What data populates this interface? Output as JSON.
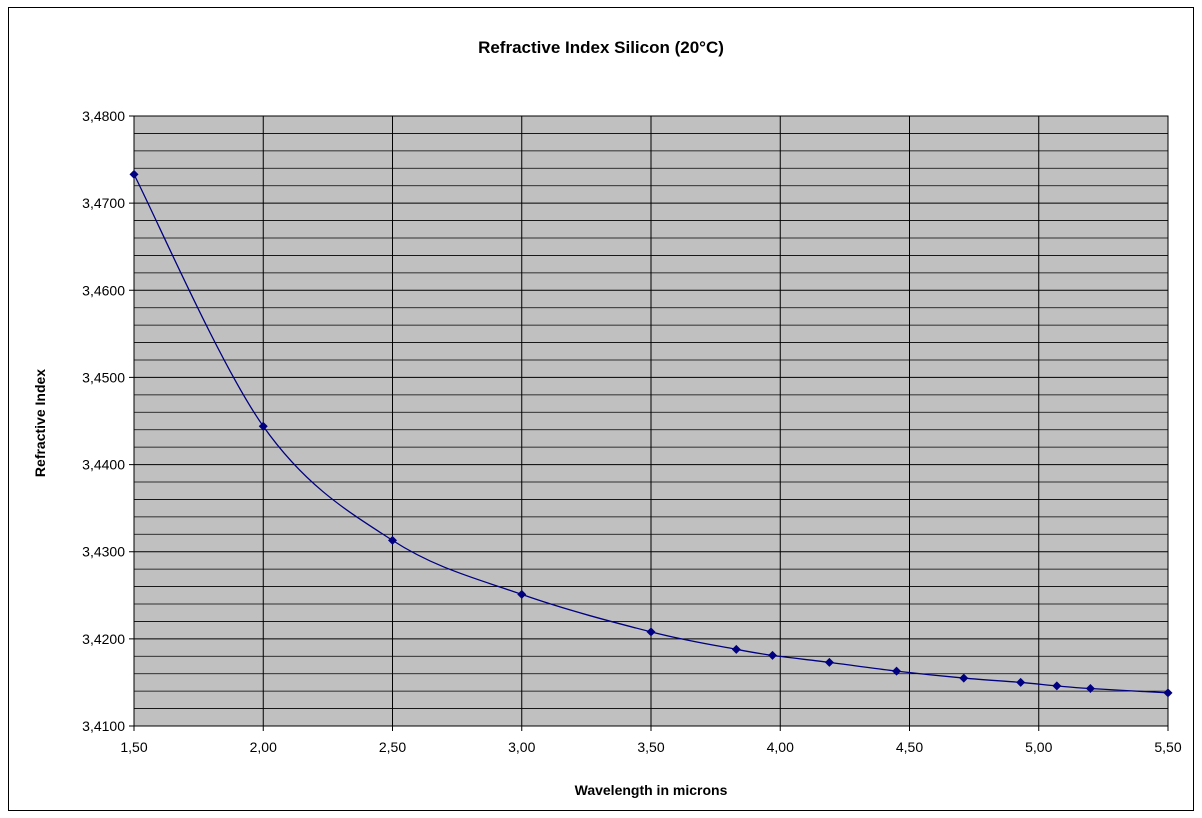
{
  "chart_data": {
    "type": "line",
    "title": "Refractive Index Silicon (20°C)",
    "xlabel": "Wavelength in microns",
    "ylabel": "Refractive Index",
    "xlim": [
      1.5,
      5.5
    ],
    "ylim": [
      3.41,
      3.48
    ],
    "x_ticks": [
      "1,50",
      "2,00",
      "2,50",
      "3,00",
      "3,50",
      "4,00",
      "4,50",
      "5,00",
      "5,50"
    ],
    "y_ticks": [
      "3,4100",
      "3,4200",
      "3,4300",
      "3,4400",
      "3,4500",
      "3,4600",
      "3,4700",
      "3,4800"
    ],
    "x": [
      1.5,
      2.0,
      2.5,
      3.0,
      3.5,
      3.83,
      3.97,
      4.19,
      4.45,
      4.71,
      4.93,
      5.07,
      5.2,
      5.5
    ],
    "series": [
      {
        "values": [
          3.4733,
          3.4444,
          3.4313,
          3.4251,
          3.4208,
          3.4188,
          3.4181,
          3.4173,
          3.4163,
          3.4155,
          3.415,
          3.4146,
          3.4143,
          3.4138
        ],
        "color": "#000080"
      }
    ],
    "plot_background": "#c0c0c0",
    "grid": true,
    "minor_grid": true,
    "legend": false
  }
}
